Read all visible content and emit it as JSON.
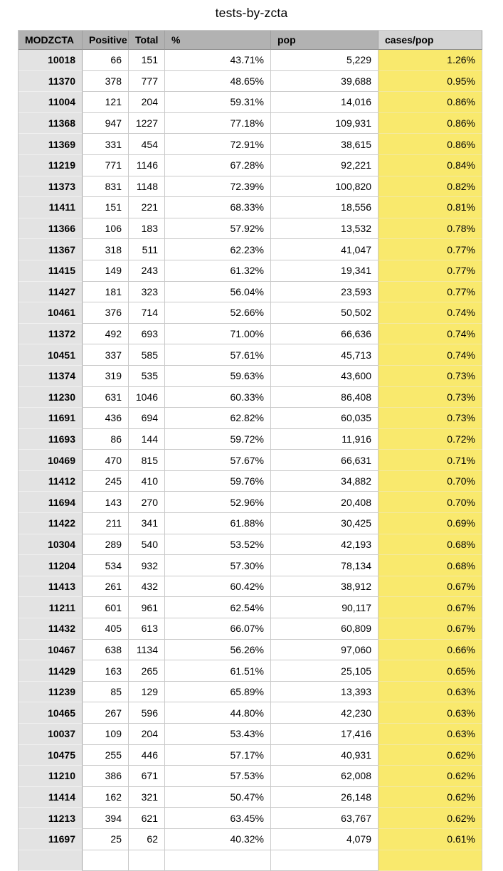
{
  "page_title": "tests-by-zcta",
  "chart_data": {
    "type": "table",
    "title": "tests-by-zcta",
    "columns": [
      {
        "key": "modzcta",
        "label": "MODZCTA"
      },
      {
        "key": "positive",
        "label": "Positive"
      },
      {
        "key": "total",
        "label": "Total"
      },
      {
        "key": "pct",
        "label": "%"
      },
      {
        "key": "pop",
        "label": "pop"
      },
      {
        "key": "cases_pop",
        "label": "cases/pop"
      }
    ],
    "rows": [
      [
        "10018",
        "66",
        "151",
        "43.71%",
        "5,229",
        "1.26%"
      ],
      [
        "11370",
        "378",
        "777",
        "48.65%",
        "39,688",
        "0.95%"
      ],
      [
        "11004",
        "121",
        "204",
        "59.31%",
        "14,016",
        "0.86%"
      ],
      [
        "11368",
        "947",
        "1227",
        "77.18%",
        "109,931",
        "0.86%"
      ],
      [
        "11369",
        "331",
        "454",
        "72.91%",
        "38,615",
        "0.86%"
      ],
      [
        "11219",
        "771",
        "1146",
        "67.28%",
        "92,221",
        "0.84%"
      ],
      [
        "11373",
        "831",
        "1148",
        "72.39%",
        "100,820",
        "0.82%"
      ],
      [
        "11411",
        "151",
        "221",
        "68.33%",
        "18,556",
        "0.81%"
      ],
      [
        "11366",
        "106",
        "183",
        "57.92%",
        "13,532",
        "0.78%"
      ],
      [
        "11367",
        "318",
        "511",
        "62.23%",
        "41,047",
        "0.77%"
      ],
      [
        "11415",
        "149",
        "243",
        "61.32%",
        "19,341",
        "0.77%"
      ],
      [
        "11427",
        "181",
        "323",
        "56.04%",
        "23,593",
        "0.77%"
      ],
      [
        "10461",
        "376",
        "714",
        "52.66%",
        "50,502",
        "0.74%"
      ],
      [
        "11372",
        "492",
        "693",
        "71.00%",
        "66,636",
        "0.74%"
      ],
      [
        "10451",
        "337",
        "585",
        "57.61%",
        "45,713",
        "0.74%"
      ],
      [
        "11374",
        "319",
        "535",
        "59.63%",
        "43,600",
        "0.73%"
      ],
      [
        "11230",
        "631",
        "1046",
        "60.33%",
        "86,408",
        "0.73%"
      ],
      [
        "11691",
        "436",
        "694",
        "62.82%",
        "60,035",
        "0.73%"
      ],
      [
        "11693",
        "86",
        "144",
        "59.72%",
        "11,916",
        "0.72%"
      ],
      [
        "10469",
        "470",
        "815",
        "57.67%",
        "66,631",
        "0.71%"
      ],
      [
        "11412",
        "245",
        "410",
        "59.76%",
        "34,882",
        "0.70%"
      ],
      [
        "11694",
        "143",
        "270",
        "52.96%",
        "20,408",
        "0.70%"
      ],
      [
        "11422",
        "211",
        "341",
        "61.88%",
        "30,425",
        "0.69%"
      ],
      [
        "10304",
        "289",
        "540",
        "53.52%",
        "42,193",
        "0.68%"
      ],
      [
        "11204",
        "534",
        "932",
        "57.30%",
        "78,134",
        "0.68%"
      ],
      [
        "11413",
        "261",
        "432",
        "60.42%",
        "38,912",
        "0.67%"
      ],
      [
        "11211",
        "601",
        "961",
        "62.54%",
        "90,117",
        "0.67%"
      ],
      [
        "11432",
        "405",
        "613",
        "66.07%",
        "60,809",
        "0.67%"
      ],
      [
        "10467",
        "638",
        "1134",
        "56.26%",
        "97,060",
        "0.66%"
      ],
      [
        "11429",
        "163",
        "265",
        "61.51%",
        "25,105",
        "0.65%"
      ],
      [
        "11239",
        "85",
        "129",
        "65.89%",
        "13,393",
        "0.63%"
      ],
      [
        "10465",
        "267",
        "596",
        "44.80%",
        "42,230",
        "0.63%"
      ],
      [
        "10037",
        "109",
        "204",
        "53.43%",
        "17,416",
        "0.63%"
      ],
      [
        "10475",
        "255",
        "446",
        "57.17%",
        "40,931",
        "0.62%"
      ],
      [
        "11210",
        "386",
        "671",
        "57.53%",
        "62,008",
        "0.62%"
      ],
      [
        "11414",
        "162",
        "321",
        "50.47%",
        "26,148",
        "0.62%"
      ],
      [
        "11213",
        "394",
        "621",
        "63.45%",
        "63,767",
        "0.62%"
      ],
      [
        "11697",
        "25",
        "62",
        "40.32%",
        "4,079",
        "0.61%"
      ]
    ]
  },
  "colors": {
    "header_bg": "#b2b2b2",
    "header_highlight_bg": "#d3d3d3",
    "zcta_col_bg": "#e3e3e3",
    "highlight_col_bg": "#f9e96d",
    "grid": "#c9c9c9",
    "grid_dark": "#9e9e9e",
    "header_underline": "#8c8c8c"
  }
}
